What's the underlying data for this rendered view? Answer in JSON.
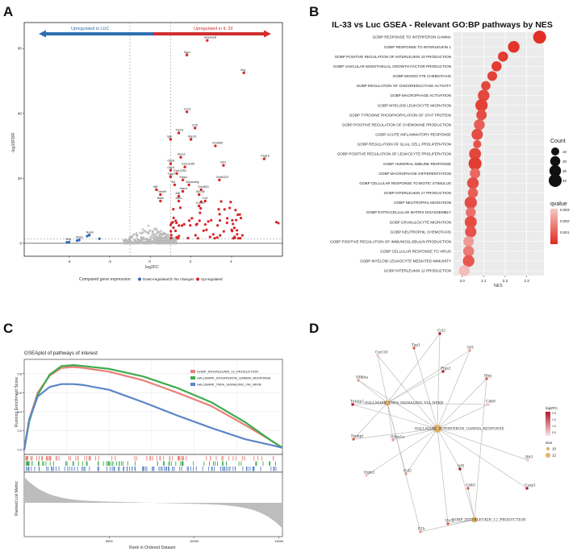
{
  "panels": {
    "a_label": "A",
    "b_label": "B",
    "c_label": "C",
    "d_label": "D"
  },
  "colors": {
    "up": "#d7262a",
    "down": "#2a6ab3",
    "nochange": "#b9b9b9",
    "blue_arrow": "#2f6fb2",
    "red_arrow": "#cf2f2f",
    "gsea_red": "#e98079",
    "gsea_green": "#3dab4d",
    "gsea_blue": "#5b84c7"
  },
  "chart_data": [
    {
      "id": "volcano",
      "type": "scatter",
      "xlabel": "log2FC",
      "ylabel": "-log10FDR",
      "xlim": [
        -6.2,
        6.5
      ],
      "ylim": [
        -4,
        68
      ],
      "xticks": [
        "-4",
        "-2",
        "0",
        "2",
        "4"
      ],
      "xtick_values": [
        -4,
        -2,
        0,
        2,
        4
      ],
      "yticks": [
        "0",
        "20",
        "40",
        "60"
      ],
      "ytick_values": [
        0,
        20,
        40,
        60
      ],
      "arrow_left_label": "Upregulated in LUC",
      "arrow_right_label": "Upregulated in IL 33",
      "legend_title": "Compared gene expression",
      "legend_items": [
        "Down-regulated",
        "No changes",
        "Up-regulated"
      ],
      "labeled_points": [
        {
          "label": "Serpina3f",
          "x": 2.8,
          "y": 62.5
        },
        {
          "label": "Sgp1",
          "x": 1.8,
          "y": 58
        },
        {
          "label": "Ifng",
          "x": 4.6,
          "y": 52.5
        },
        {
          "label": "Ccmc",
          "x": 1.8,
          "y": 40.5
        },
        {
          "label": "Ccl5",
          "x": 2.2,
          "y": 35.5
        },
        {
          "label": "Txb21",
          "x": 1.4,
          "y": 34
        },
        {
          "label": "Igtp",
          "x": 1.0,
          "y": 32
        },
        {
          "label": "Gbp10",
          "x": 2.0,
          "y": 32
        },
        {
          "label": "Gm4861",
          "x": 3.2,
          "y": 30
        },
        {
          "label": "Pag15",
          "x": 5.6,
          "y": 26
        },
        {
          "label": "Aurp2",
          "x": 1.5,
          "y": 26.5
        },
        {
          "label": "Gm13185",
          "x": 1.7,
          "y": 23.5
        },
        {
          "label": "Gbp6",
          "x": 1.0,
          "y": 24.5
        },
        {
          "label": "Gbp3",
          "x": 1.0,
          "y": 22.5
        },
        {
          "label": "Gm12250",
          "x": 1.3,
          "y": 21.5
        },
        {
          "label": "Ubl1",
          "x": 3.6,
          "y": 24
        },
        {
          "label": "Tgtp2",
          "x": 1.0,
          "y": 20.5
        },
        {
          "label": "Klbp4",
          "x": 1.6,
          "y": 19.5
        },
        {
          "label": "Gm50237",
          "x": 3.4,
          "y": 19.5
        },
        {
          "label": "Iit3",
          "x": 1.2,
          "y": 18
        },
        {
          "label": "Serpina3g",
          "x": 1.9,
          "y": 18
        },
        {
          "label": "Irf8",
          "x": 0.3,
          "y": 16.5
        },
        {
          "label": "Gm4841",
          "x": 2.5,
          "y": 16.5
        },
        {
          "label": "Vasn1",
          "x": 1.6,
          "y": 16
        },
        {
          "label": "Tnfrsf9",
          "x": 0.5,
          "y": 15
        },
        {
          "label": "Slc7a5",
          "x": 2.4,
          "y": 15
        },
        {
          "label": "Ibtk",
          "x": 1.4,
          "y": 14.5
        },
        {
          "label": "Bdan",
          "x": 0.5,
          "y": 13
        },
        {
          "label": "Akr4",
          "x": 1.4,
          "y": 13
        },
        {
          "label": "Ccl2",
          "x": 2.7,
          "y": 13
        },
        {
          "label": "Cxcl10",
          "x": 2.4,
          "y": 11.5
        },
        {
          "label": "Noprk",
          "x": -3.0,
          "y": 2.5
        },
        {
          "label": "Rbpp",
          "x": -3.5,
          "y": 1
        },
        {
          "label": "Olig",
          "x": -4.0,
          "y": 0.3
        }
      ]
    },
    {
      "id": "gsea_dot",
      "type": "scatter",
      "title": "IL-33 vs Luc GSEA - Relevant GO:BP pathways by NES",
      "xlabel": "NES",
      "xlim": [
        1.96,
        2.38
      ],
      "xticks": [
        "2.0",
        "2.1",
        "2.2",
        "2.3"
      ],
      "xtick_values": [
        2.0,
        2.1,
        2.2,
        2.3
      ],
      "legend_count_title": "Count",
      "legend_count_values": [
        10,
        20,
        30,
        40
      ],
      "legend_count_labels": [
        "10",
        "20",
        "30",
        "40"
      ],
      "legend_q_title": "qvalue",
      "legend_q_labels": [
        "0.003",
        "0.002",
        "0.001"
      ],
      "pathways": [
        "GOBP RESPONSE TO INTERFERON GAMMA",
        "GOBP RESPONSE TO INTERLEUKIN 1",
        "GOBP POSITIVE REGULATION OF INTERLEUKIN 10 PRODUCTION",
        "GOBP VASCULAR ENDOTHELIAL GROWTH FACTOR PRODUCTION",
        "GOBP MONOCYTE CHEMOTAXIS",
        "GOBP REGULATION OF OXIDOREDUCTASE ACTIVITY",
        "GOBP MACROPHAGE ACTIVATION",
        "GOBP MYELOID LEUKOCYTE MIGRATION",
        "GOBP TYROSINE PHOSPHORYLATION OF STAT PROTEIN",
        "GOBP POSITIVE REGULATION OF CHEMOKINE PRODUCTION",
        "GOBP ACUTE INFLAMMATORY RESPONSE",
        "GOBP REGULATION OF GLIAL CELL PROLIFERATION",
        "GOBP POSITIVE REGULATION OF LEUKOCYTE PROLIFERATION",
        "GOBP HUMORAL IMMUNE RESPONSE",
        "GOBP MACROPHAGE DIFFERENTIATION",
        "GOBP CELLULAR RESPONSE TO BIOTIC STIMULUS",
        "GOBP INTERLEUKIN 17 PRODUCTION",
        "GOBP NEUTROPHIL MIGRATION",
        "GOBP EXTRACELLULAR MATRIX DISASSEMBLY",
        "GOBP GRANULOCYTE MIGRATION",
        "GOBP NEUTROPHIL CHEMOTAXIS",
        "GOBP POSITIVE REGULATION OF IMMUNOGLOBULIN PRODUCTION",
        "GOBP CELLULAR RESPONSE TO VIRUS",
        "GOBP MYELOID LEUKOCYTE MEDIATED IMMUNITY",
        "GOBP INTERLEUKIN 12 PRODUCTION"
      ],
      "nes": [
        2.36,
        2.24,
        2.19,
        2.16,
        2.14,
        2.11,
        2.1,
        2.09,
        2.09,
        2.08,
        2.07,
        2.07,
        2.06,
        2.06,
        2.06,
        2.05,
        2.05,
        2.04,
        2.04,
        2.04,
        2.04,
        2.03,
        2.03,
        2.03,
        2.01
      ],
      "count": [
        40,
        30,
        20,
        20,
        18,
        16,
        30,
        35,
        22,
        25,
        28,
        10,
        32,
        40,
        22,
        30,
        20,
        35,
        20,
        33,
        28,
        22,
        25,
        30,
        25
      ],
      "qvalue": [
        0.0004,
        0.0005,
        0.0006,
        0.0006,
        0.0007,
        0.0008,
        0.0008,
        0.0007,
        0.0009,
        0.0012,
        0.0009,
        0.001,
        0.0008,
        0.0006,
        0.0014,
        0.0009,
        0.0012,
        0.0009,
        0.0015,
        0.0009,
        0.001,
        0.0022,
        0.0017,
        0.0011,
        0.0028
      ]
    },
    {
      "id": "gsea_enrichment",
      "type": "line",
      "title": "GSEAplot of pathways of interest",
      "ylabel": "Running Enrichment Score",
      "ylabel2": "Ranked List Metric",
      "xlabel": "Rank in Ordered Dataset",
      "xticks": [
        "5000",
        "10000",
        "15000"
      ],
      "xtick_values": [
        5000,
        10000,
        15000
      ],
      "yticks": [
        "0.0",
        "0.2",
        "0.4",
        "0.6",
        "0.8"
      ],
      "ytick_values": [
        0.0,
        0.2,
        0.4,
        0.6,
        0.8
      ],
      "xlim": [
        0,
        15200
      ],
      "ylim": [
        -0.05,
        0.95
      ],
      "series": [
        {
          "name": "GOBP_INTERLEUKIN_12_PRODUCTION",
          "color": "#e98079",
          "x": [
            0,
            300,
            800,
            1500,
            2200,
            2900,
            3500,
            5000,
            7000,
            9000,
            11000,
            13000,
            14500,
            15200
          ],
          "y": [
            0.0,
            0.32,
            0.6,
            0.78,
            0.86,
            0.87,
            0.86,
            0.82,
            0.73,
            0.6,
            0.46,
            0.26,
            0.1,
            0.02
          ]
        },
        {
          "name": "HALLMARK_INTERFERON_GAMMA_RESPONSE",
          "color": "#3dab4d",
          "x": [
            0,
            300,
            800,
            1500,
            2200,
            2900,
            3500,
            5000,
            7000,
            9000,
            11000,
            13000,
            14500,
            15200
          ],
          "y": [
            0.0,
            0.3,
            0.58,
            0.79,
            0.88,
            0.89,
            0.88,
            0.85,
            0.77,
            0.65,
            0.5,
            0.29,
            0.1,
            0.02
          ]
        },
        {
          "name": "HALLMARK_TNFA_SIGNALING_VIA_NFKB",
          "color": "#5b84c7",
          "x": [
            0,
            300,
            800,
            1500,
            2200,
            2900,
            3500,
            5000,
            7000,
            9000,
            11000,
            13000,
            14500,
            15200
          ],
          "y": [
            0.0,
            0.32,
            0.56,
            0.66,
            0.69,
            0.69,
            0.68,
            0.63,
            0.5,
            0.36,
            0.23,
            0.11,
            0.05,
            0.02
          ]
        }
      ]
    }
  ],
  "network": {
    "legend_title1": "log2FC",
    "legend_title2": "size",
    "legend_ticks": [
      "2.0",
      "1.5",
      "1.0",
      "0.5"
    ],
    "legend_sizes": [
      "10",
      "12"
    ],
    "hubs": [
      {
        "id": "tnfa",
        "label": "HALLMARK_TNFA_SIGNALING_VIA_NFKB"
      },
      {
        "id": "ifng",
        "label": "HALLMARK_INTERFERON_GAMMA_RESPONSE"
      },
      {
        "id": "il12",
        "label": "GOBP_INTERLEUKIN_12_PRODUCTION"
      }
    ],
    "genes": [
      {
        "label": "Ccl2",
        "hubs": [
          "tnfa",
          "ifng"
        ]
      },
      {
        "label": "Tap1",
        "hubs": [
          "ifng"
        ]
      },
      {
        "label": "Irf1",
        "hubs": [
          "ifng",
          "tnfa"
        ]
      },
      {
        "label": "Cxcl10",
        "hubs": [
          "tnfa",
          "ifng"
        ]
      },
      {
        "label": "Ptgs2",
        "hubs": [
          "tnfa"
        ]
      },
      {
        "label": "Ifng",
        "hubs": [
          "ifng",
          "il12"
        ]
      },
      {
        "label": "Nfkbia",
        "hubs": [
          "tnfa",
          "ifng"
        ]
      },
      {
        "label": "Cd69",
        "hubs": [
          "tnfa",
          "ifng"
        ]
      },
      {
        "label": "Tnfaip2",
        "hubs": [
          "tnfa",
          "ifng"
        ]
      },
      {
        "label": "Nampt",
        "hubs": [
          "tnfa",
          "ifng"
        ]
      },
      {
        "label": "Cdkn1a",
        "hubs": [
          "tnfa",
          "ifng"
        ]
      },
      {
        "label": "Ifit3",
        "hubs": [
          "ifng"
        ]
      },
      {
        "label": "Irf5",
        "hubs": [
          "ifng",
          "il12"
        ]
      },
      {
        "label": "Cd40",
        "hubs": [
          "il12"
        ]
      },
      {
        "label": "Ccl2",
        "hubs": [
          "ifng",
          "tnfa"
        ]
      },
      {
        "label": "Irgm1",
        "hubs": [
          "ifng"
        ]
      },
      {
        "label": "Casp1",
        "hubs": [
          "ifng"
        ]
      },
      {
        "label": "Hcl2",
        "hubs": [
          "ifng",
          "il12"
        ]
      },
      {
        "label": "Il1b",
        "hubs": [
          "tnfa",
          "il12"
        ]
      }
    ]
  }
}
